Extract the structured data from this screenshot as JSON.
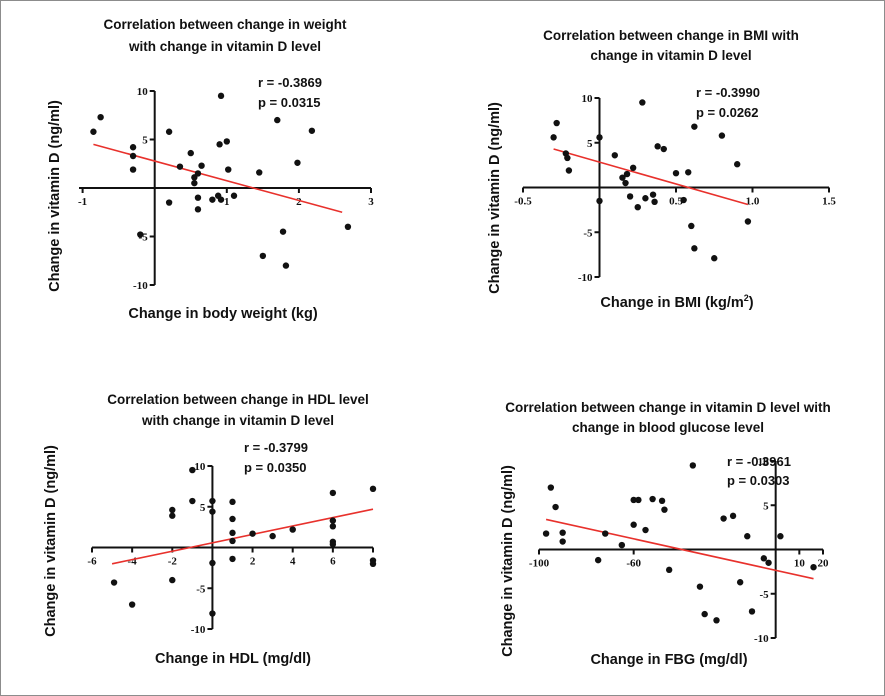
{
  "chart_data": [
    {
      "type": "scatter",
      "title": [
        "Correlation between change in weight",
        "with change in vitamin D level"
      ],
      "r_text": "r = -0.3869",
      "p_text": "p = 0.0315",
      "xlabel": "Change in body weight (kg)",
      "ylabel": "Change in vitamin D (ng/ml)",
      "xlim": [
        -1.05,
        3.0
      ],
      "ylim": [
        -10,
        10
      ],
      "x_ticks": [
        -1,
        1,
        2,
        3
      ],
      "x_tick_labels": [
        "-1",
        "1",
        "2",
        "3"
      ],
      "y_ticks": [
        10,
        5,
        -5,
        -10
      ],
      "y_tick_labels": [
        "10",
        "5",
        "-5",
        "-10"
      ],
      "fit_line": {
        "x": [
          -0.85,
          2.6
        ],
        "y": [
          4.5,
          -2.5
        ]
      },
      "points": [
        {
          "x": -0.85,
          "y": 5.8
        },
        {
          "x": -0.75,
          "y": 7.3
        },
        {
          "x": -0.3,
          "y": 4.2
        },
        {
          "x": -0.3,
          "y": 3.3
        },
        {
          "x": -0.3,
          "y": 1.9
        },
        {
          "x": -0.2,
          "y": -4.8
        },
        {
          "x": 0.2,
          "y": 5.8
        },
        {
          "x": 0.2,
          "y": -1.5
        },
        {
          "x": 0.35,
          "y": 2.2
        },
        {
          "x": 0.5,
          "y": 3.6
        },
        {
          "x": 0.55,
          "y": 1.1
        },
        {
          "x": 0.55,
          "y": 0.5
        },
        {
          "x": 0.6,
          "y": 1.5
        },
        {
          "x": 0.6,
          "y": -1.0
        },
        {
          "x": 0.6,
          "y": -2.2
        },
        {
          "x": 0.65,
          "y": 2.3
        },
        {
          "x": 0.8,
          "y": -1.2
        },
        {
          "x": 0.88,
          "y": -0.8
        },
        {
          "x": 0.9,
          "y": 4.5
        },
        {
          "x": 0.92,
          "y": 9.5
        },
        {
          "x": 0.92,
          "y": -1.2
        },
        {
          "x": 1.0,
          "y": 4.8
        },
        {
          "x": 1.02,
          "y": 1.9
        },
        {
          "x": 1.1,
          "y": -0.8
        },
        {
          "x": 1.45,
          "y": 1.6
        },
        {
          "x": 1.5,
          "y": -7.0
        },
        {
          "x": 1.7,
          "y": 7.0
        },
        {
          "x": 1.78,
          "y": -4.5
        },
        {
          "x": 1.82,
          "y": -8.0
        },
        {
          "x": 1.98,
          "y": 2.6
        },
        {
          "x": 2.18,
          "y": 5.9
        },
        {
          "x": 2.68,
          "y": -4.0
        }
      ]
    },
    {
      "type": "scatter",
      "title": [
        "Correlation between change in BMI with",
        "change in vitamin D level"
      ],
      "r_text": "r = -0.3990",
      "p_text": "p = 0.0262",
      "xlabel": "Change in BMI (kg/m",
      "xlabel_sup": "2",
      "xlabel_end": ")",
      "ylabel": "Change in vitamin D (ng/ml)",
      "xlim": [
        -0.5,
        1.5
      ],
      "ylim": [
        -10,
        10
      ],
      "x_ticks": [
        -0.5,
        0.5,
        1.0,
        1.5
      ],
      "x_tick_labels": [
        "-0.5",
        "0.5",
        "1.0",
        "1.5"
      ],
      "y_ticks": [
        10,
        5,
        -5,
        -10
      ],
      "y_tick_labels": [
        "10",
        "5",
        "-5",
        "-10"
      ],
      "fit_line": {
        "x": [
          -0.3,
          0.97
        ],
        "y": [
          4.3,
          -1.9
        ]
      },
      "points": [
        {
          "x": -0.3,
          "y": 5.6
        },
        {
          "x": -0.28,
          "y": 7.2
        },
        {
          "x": -0.22,
          "y": 3.8
        },
        {
          "x": -0.21,
          "y": 3.3
        },
        {
          "x": -0.2,
          "y": 1.9
        },
        {
          "x": 0.0,
          "y": 5.6
        },
        {
          "x": 0.0,
          "y": -1.5
        },
        {
          "x": 0.1,
          "y": 3.6
        },
        {
          "x": 0.15,
          "y": 1.1
        },
        {
          "x": 0.17,
          "y": 0.5
        },
        {
          "x": 0.18,
          "y": 1.5
        },
        {
          "x": 0.2,
          "y": -1.0
        },
        {
          "x": 0.22,
          "y": 2.2
        },
        {
          "x": 0.25,
          "y": -2.2
        },
        {
          "x": 0.28,
          "y": 9.5
        },
        {
          "x": 0.3,
          "y": -1.2
        },
        {
          "x": 0.35,
          "y": -0.8
        },
        {
          "x": 0.36,
          "y": -1.6
        },
        {
          "x": 0.38,
          "y": 4.6
        },
        {
          "x": 0.42,
          "y": 4.3
        },
        {
          "x": 0.5,
          "y": 1.6
        },
        {
          "x": 0.55,
          "y": -1.4
        },
        {
          "x": 0.6,
          "y": -4.3
        },
        {
          "x": 0.62,
          "y": 6.8
        },
        {
          "x": 0.62,
          "y": -6.8
        },
        {
          "x": 0.75,
          "y": -7.9
        },
        {
          "x": 0.8,
          "y": 5.8
        },
        {
          "x": 0.9,
          "y": 2.6
        },
        {
          "x": 0.97,
          "y": -3.8
        },
        {
          "x": 0.58,
          "y": 1.7
        }
      ]
    },
    {
      "type": "scatter",
      "title": [
        "Correlation between change in HDL level",
        "with change in vitamin D level"
      ],
      "r_text": "r = -0.3799",
      "p_text": "p = 0.0350",
      "xlabel": "Change in HDL (mg/dl)",
      "ylabel": "Change in vitamin D (ng/ml)",
      "xlim": [
        -6,
        8
      ],
      "ylim": [
        -10,
        10
      ],
      "x_ticks": [
        -6,
        -4,
        -2,
        2,
        4,
        6,
        8
      ],
      "x_tick_labels": [
        "-6",
        "-4",
        "-2",
        "2",
        "4",
        "6",
        "8"
      ],
      "y_ticks": [
        10,
        5,
        -5,
        -10
      ],
      "y_tick_labels": [
        "10",
        "5",
        "-5",
        "-10"
      ],
      "fit_line": {
        "x": [
          -5,
          8
        ],
        "y": [
          -2.0,
          4.7
        ]
      },
      "points": [
        {
          "x": -4.9,
          "y": -4.3
        },
        {
          "x": -4.0,
          "y": -7.0
        },
        {
          "x": -2.0,
          "y": 4.6
        },
        {
          "x": -2.0,
          "y": 3.9
        },
        {
          "x": -2.0,
          "y": -4.0
        },
        {
          "x": -1.0,
          "y": 9.5
        },
        {
          "x": -1.0,
          "y": 5.7
        },
        {
          "x": 0.0,
          "y": 5.7
        },
        {
          "x": 0.0,
          "y": 4.4
        },
        {
          "x": 0.0,
          "y": -1.9
        },
        {
          "x": 0.0,
          "y": -8.1
        },
        {
          "x": 1.0,
          "y": 5.6
        },
        {
          "x": 1.0,
          "y": 3.5
        },
        {
          "x": 1.0,
          "y": 1.8
        },
        {
          "x": 1.0,
          "y": 0.8
        },
        {
          "x": 1.0,
          "y": -1.4
        },
        {
          "x": 2.0,
          "y": 1.7
        },
        {
          "x": 3.0,
          "y": 1.4
        },
        {
          "x": 4.0,
          "y": 2.2
        },
        {
          "x": 6.0,
          "y": 6.7
        },
        {
          "x": 6.0,
          "y": 3.3
        },
        {
          "x": 6.0,
          "y": 2.6
        },
        {
          "x": 6.0,
          "y": 0.7
        },
        {
          "x": 6.0,
          "y": 0.4
        },
        {
          "x": 8.0,
          "y": 7.2
        },
        {
          "x": 8.0,
          "y": -1.6
        },
        {
          "x": 8.0,
          "y": -2.0
        }
      ]
    },
    {
      "type": "scatter",
      "title": [
        "Correlation between change in vitamin D level with",
        "change in blood glucose level"
      ],
      "r_text": "r = -0.3961",
      "p_text": "p = 0.0303",
      "xlabel": "Change in FBG (mg/dl)",
      "ylabel": "Change in vitamin D (ng/ml)",
      "xlim": [
        -100,
        20
      ],
      "ylim": [
        -10,
        10
      ],
      "x_ticks": [
        -100,
        -60,
        10,
        20
      ],
      "x_tick_labels": [
        "-100",
        "-60",
        "10",
        "20"
      ],
      "y_ticks": [
        10,
        5,
        -5,
        -10
      ],
      "y_tick_labels": [
        "10",
        "5",
        "-5",
        "-10"
      ],
      "fit_line": {
        "x": [
          -97,
          16
        ],
        "y": [
          3.4,
          -3.3
        ]
      },
      "points": [
        {
          "x": -97,
          "y": 1.8
        },
        {
          "x": -95,
          "y": 7.0
        },
        {
          "x": -93,
          "y": 4.8
        },
        {
          "x": -90,
          "y": 1.9
        },
        {
          "x": -90,
          "y": 0.9
        },
        {
          "x": -75,
          "y": -1.2
        },
        {
          "x": -72,
          "y": 1.8
        },
        {
          "x": -65,
          "y": 0.5
        },
        {
          "x": -60,
          "y": 5.6
        },
        {
          "x": -60,
          "y": 2.8
        },
        {
          "x": -58,
          "y": 5.6
        },
        {
          "x": -55,
          "y": 2.2
        },
        {
          "x": -52,
          "y": 5.7
        },
        {
          "x": -48,
          "y": 5.5
        },
        {
          "x": -47,
          "y": 4.5
        },
        {
          "x": -45,
          "y": -2.3
        },
        {
          "x": -35,
          "y": 9.5
        },
        {
          "x": -32,
          "y": -4.2
        },
        {
          "x": -30,
          "y": -7.3
        },
        {
          "x": -22,
          "y": 3.5
        },
        {
          "x": -18,
          "y": 3.8
        },
        {
          "x": -15,
          "y": -3.7
        },
        {
          "x": -12,
          "y": 1.5
        },
        {
          "x": -10,
          "y": -7.0
        },
        {
          "x": -5,
          "y": -1.0
        },
        {
          "x": -3,
          "y": -1.5
        },
        {
          "x": 2,
          "y": 1.5
        },
        {
          "x": 16,
          "y": -2.0
        },
        {
          "x": -25,
          "y": -8.0
        }
      ]
    }
  ]
}
